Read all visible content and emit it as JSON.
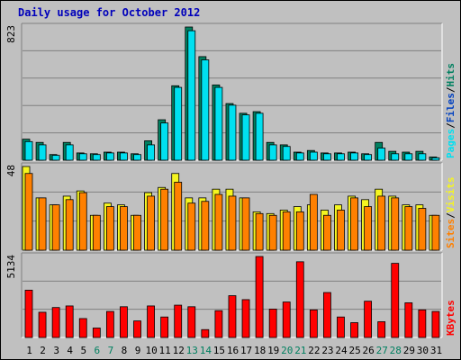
{
  "title": "Daily usage for October 2012",
  "colors": {
    "pages": "#00e0f0",
    "hits": "#008060",
    "visits": "#f5f520",
    "sites": "#ff8000",
    "kbytes": "#ff0000",
    "weekday_label": "#000000",
    "weekend_label": "#008060",
    "title": "#0000bb"
  },
  "chart_data": [
    {
      "type": "bar",
      "panel": "hits-files-pages",
      "ymax_label": "823",
      "ylim": [
        0,
        823
      ],
      "legend": [
        {
          "key": "pages",
          "label": "Pages"
        },
        {
          "key": "files",
          "label": "Files"
        },
        {
          "key": "hits",
          "label": "Hits"
        }
      ],
      "legend_separator": "/",
      "categories": [
        "1",
        "2",
        "3",
        "4",
        "5",
        "6",
        "7",
        "8",
        "9",
        "10",
        "11",
        "12",
        "13",
        "14",
        "15",
        "16",
        "17",
        "18",
        "19",
        "20",
        "21",
        "22",
        "23",
        "24",
        "25",
        "26",
        "27",
        "28",
        "29",
        "30",
        "31"
      ],
      "weekend_days": [
        "6",
        "7",
        "13",
        "14",
        "20",
        "21",
        "27",
        "28"
      ],
      "series": [
        {
          "key": "hits",
          "values": [
            130,
            110,
            35,
            110,
            45,
            40,
            50,
            50,
            40,
            120,
            250,
            460,
            823,
            640,
            465,
            350,
            290,
            300,
            110,
            95,
            50,
            60,
            45,
            45,
            50,
            40,
            110,
            55,
            50,
            55,
            20
          ]
        },
        {
          "key": "pages",
          "values": [
            115,
            95,
            30,
            95,
            40,
            35,
            45,
            45,
            35,
            95,
            230,
            450,
            800,
            620,
            450,
            340,
            280,
            290,
            95,
            85,
            45,
            50,
            40,
            40,
            45,
            35,
            75,
            40,
            40,
            40,
            15
          ]
        }
      ]
    },
    {
      "type": "bar",
      "panel": "visits-sites",
      "ymax_label": "48",
      "ylim": [
        0,
        48
      ],
      "legend": [
        {
          "key": "sites",
          "label": "Sites"
        },
        {
          "key": "visits",
          "label": "Visits"
        }
      ],
      "legend_separator": "/",
      "categories": [
        "1",
        "2",
        "3",
        "4",
        "5",
        "6",
        "7",
        "8",
        "9",
        "10",
        "11",
        "12",
        "13",
        "14",
        "15",
        "16",
        "17",
        "18",
        "19",
        "20",
        "21",
        "22",
        "23",
        "24",
        "25",
        "26",
        "27",
        "28",
        "29",
        "30",
        "31"
      ],
      "series": [
        {
          "key": "visits",
          "values": [
            48,
            30,
            26,
            31,
            34,
            20,
            27,
            26,
            20,
            33,
            36,
            44,
            30,
            30,
            35,
            35,
            30,
            22,
            21,
            23,
            25,
            26,
            23,
            26,
            31,
            29,
            35,
            31,
            26,
            26,
            20
          ]
        },
        {
          "key": "sites",
          "values": [
            44,
            30,
            26,
            29,
            33,
            20,
            25,
            25,
            20,
            31,
            35,
            39,
            27,
            28,
            32,
            31,
            30,
            21,
            20,
            22,
            22,
            32,
            20,
            23,
            30,
            25,
            31,
            30,
            25,
            24,
            20
          ]
        }
      ]
    },
    {
      "type": "bar",
      "panel": "kbytes",
      "ymax_label": "5134",
      "ylim": [
        0,
        5134
      ],
      "legend": [
        {
          "key": "kbytes",
          "label": "KBytes"
        }
      ],
      "categories": [
        "1",
        "2",
        "3",
        "4",
        "5",
        "6",
        "7",
        "8",
        "9",
        "10",
        "11",
        "12",
        "13",
        "14",
        "15",
        "16",
        "17",
        "18",
        "19",
        "20",
        "21",
        "22",
        "23",
        "24",
        "25",
        "26",
        "27",
        "28",
        "29",
        "30",
        "31"
      ],
      "series": [
        {
          "key": "kbytes",
          "values": [
            3000,
            1600,
            1900,
            2000,
            1200,
            600,
            1650,
            1950,
            1050,
            2000,
            1300,
            2050,
            1950,
            500,
            1700,
            2650,
            2400,
            5134,
            1800,
            2250,
            4800,
            1750,
            2850,
            1300,
            940,
            2300,
            1000,
            4700,
            2200,
            1750,
            1650
          ]
        }
      ]
    }
  ]
}
